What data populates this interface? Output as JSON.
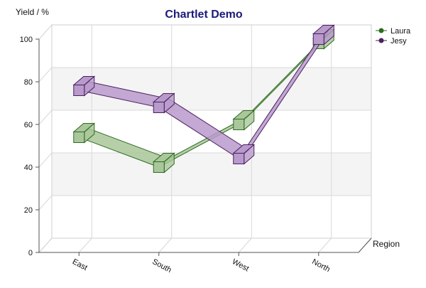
{
  "chart_data": {
    "type": "line",
    "title": "Chartlet Demo",
    "ylabel": "Yield / %",
    "xlabel": "Region",
    "categories": [
      "East",
      "South",
      "West",
      "North"
    ],
    "ylim": [
      0,
      100
    ],
    "yticks": [
      0,
      20,
      40,
      60,
      80,
      100
    ],
    "grid": true,
    "legend_position": "top-right",
    "series": [
      {
        "name": "Laura",
        "values": [
          54,
          40,
          60,
          98
        ],
        "color": "#2d6b1f",
        "fill": "#a9c79a"
      },
      {
        "name": "Jesy",
        "values": [
          76,
          68,
          44,
          100
        ],
        "color": "#4b1f60",
        "fill": "#b89acb"
      }
    ]
  }
}
